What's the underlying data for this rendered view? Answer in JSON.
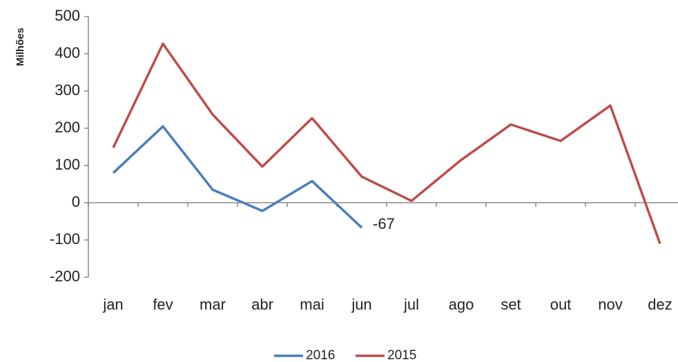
{
  "chart_data": {
    "type": "line",
    "y_label": "Milhões",
    "categories": [
      "jan",
      "fev",
      "mar",
      "abr",
      "mai",
      "jun",
      "jul",
      "ago",
      "set",
      "out",
      "nov",
      "dez"
    ],
    "series": [
      {
        "name": "2016",
        "color": "#4a7ebb",
        "values": [
          80,
          205,
          35,
          -22,
          58,
          -67,
          null,
          null,
          null,
          null,
          null,
          null
        ],
        "value_labels": [
          null,
          null,
          null,
          null,
          null,
          "-67",
          null,
          null,
          null,
          null,
          null,
          null
        ]
      },
      {
        "name": "2015",
        "color": "#be4b48",
        "values": [
          148,
          427,
          237,
          97,
          227,
          70,
          5,
          115,
          210,
          166,
          261,
          -110
        ]
      }
    ],
    "ylim": [
      -200,
      500
    ],
    "yticks": [
      -200,
      -100,
      0,
      100,
      200,
      300,
      400,
      500
    ],
    "legend": "bottom"
  }
}
